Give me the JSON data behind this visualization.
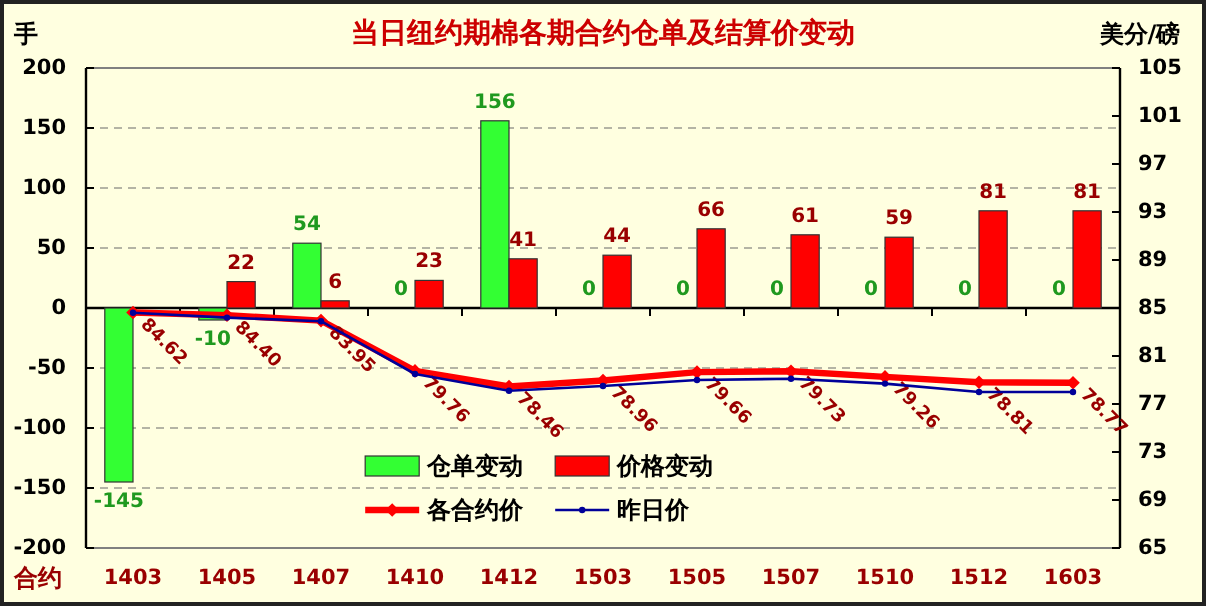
{
  "chart_data": {
    "type": "bar",
    "title": "当日纽约期棉各期合约仓单及结算价变动",
    "xlabel": "合约",
    "ylabel": "手",
    "y2label": "美分/磅",
    "categories": [
      "1403",
      "1405",
      "1407",
      "1410",
      "1412",
      "1503",
      "1505",
      "1507",
      "1510",
      "1512",
      "1603"
    ],
    "series": [
      {
        "name": "仓单变动",
        "color": "#33ff33",
        "values": [
          -145,
          -10,
          54,
          0,
          156,
          0,
          0,
          0,
          0,
          0,
          0
        ],
        "value_labels": [
          "-145",
          "-10",
          "54",
          "0",
          "156",
          "0",
          "0",
          "0",
          "0",
          "0",
          "0"
        ]
      },
      {
        "name": "价格变动",
        "color": "#ff0000",
        "values": [
          null,
          22,
          6,
          23,
          41,
          44,
          66,
          61,
          59,
          81,
          81
        ],
        "value_labels": [
          null,
          "22",
          "6",
          "23",
          "41",
          "44",
          "66",
          "61",
          "59",
          "81",
          "81"
        ]
      },
      {
        "name": "各合约价",
        "type": "line",
        "axis": "y2",
        "color": "#ff0000",
        "marker": "diamond",
        "values": [
          84.62,
          84.4,
          83.95,
          79.76,
          78.46,
          78.96,
          79.66,
          79.73,
          79.26,
          78.81,
          78.77
        ],
        "value_labels": [
          "84.62",
          "84.40",
          "83.95",
          "79.76",
          "78.46",
          "78.96",
          "79.66",
          "79.73",
          "79.26",
          "78.81",
          "78.77"
        ]
      },
      {
        "name": "昨日价",
        "type": "line",
        "axis": "y2",
        "color": "#000099",
        "marker": "circle",
        "values": [
          84.6,
          84.2,
          83.9,
          79.5,
          78.1,
          78.5,
          79.0,
          79.1,
          78.7,
          78.0,
          78.0
        ]
      }
    ],
    "ylim": [
      -200,
      200
    ],
    "yticks": [
      -200,
      -150,
      -100,
      -50,
      0,
      50,
      100,
      150,
      200
    ],
    "y2lim": [
      65,
      105
    ],
    "y2ticks": [
      65,
      69,
      73,
      77,
      81,
      85,
      89,
      93,
      97,
      101,
      105
    ],
    "grid": "y",
    "legend": "bottom"
  }
}
